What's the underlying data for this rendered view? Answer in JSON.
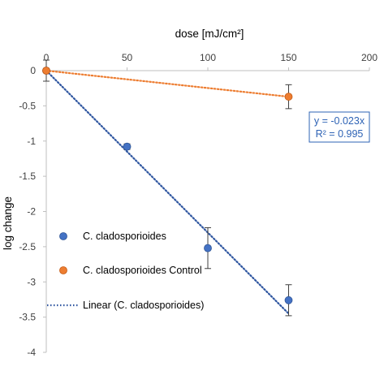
{
  "chart_data": {
    "type": "scatter",
    "title": "",
    "xlabel": "dose [mJ/cm²]",
    "ylabel": "log change",
    "xlim": [
      0,
      200
    ],
    "ylim": [
      -4,
      0
    ],
    "x_ticks": [
      "0",
      "50",
      "100",
      "150",
      "200"
    ],
    "y_ticks": [
      "0",
      "-0.5",
      "-1",
      "-1.5",
      "-2",
      "-2.5",
      "-3",
      "-3.5",
      "-4"
    ],
    "x_axis_position": "top",
    "grid": false,
    "legend_position": "bottom-left",
    "series": [
      {
        "name": "C. cladosporioides",
        "color": "#4472c4",
        "marker": "circle",
        "points": [
          {
            "x": 0,
            "y": 0,
            "err": 0
          },
          {
            "x": 50,
            "y": -1.08,
            "err": 0.04
          },
          {
            "x": 100,
            "y": -2.52,
            "err": 0.29
          },
          {
            "x": 150,
            "y": -3.26,
            "err": 0.22
          }
        ]
      },
      {
        "name": "C. cladosporioides Control",
        "color": "#ed7d31",
        "marker": "circle",
        "points": [
          {
            "x": 0,
            "y": 0,
            "err": 0.15
          },
          {
            "x": 150,
            "y": -0.37,
            "err": 0.17
          }
        ]
      }
    ],
    "trendlines": [
      {
        "name": "Linear (C. cladosporioides)",
        "color": "#2f56a0",
        "style": "dotted",
        "slope": -0.023,
        "intercept": 0,
        "x_range": [
          0,
          150
        ],
        "show_in_legend": true
      },
      {
        "name": "",
        "color": "#ed7d31",
        "style": "dotted",
        "slope": -0.00247,
        "intercept": 0,
        "x_range": [
          0,
          150
        ],
        "show_in_legend": false
      }
    ],
    "annotation": {
      "line1": "y = -0.023x",
      "line2": "R² = 0.995",
      "color": "#2e63b5"
    },
    "colors": {
      "axis": "#bfbfbf",
      "error_bar": "#404040",
      "tick_text": "#404040"
    }
  }
}
